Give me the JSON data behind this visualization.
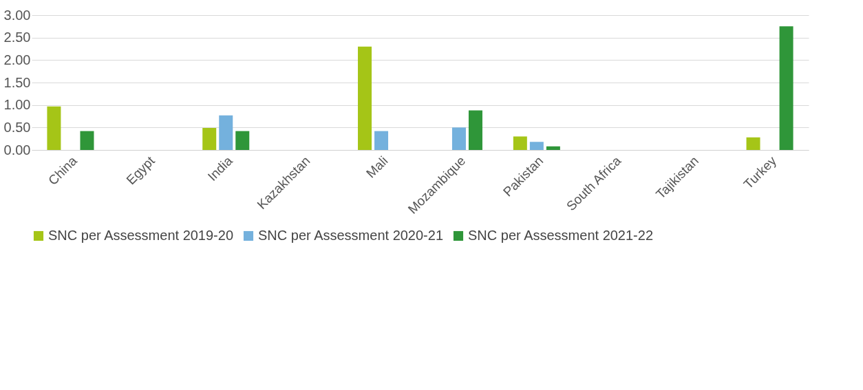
{
  "chart_data": {
    "type": "bar",
    "categories": [
      "China",
      "Egypt",
      "India",
      "Kazakhstan",
      "Mali",
      "Mozambique",
      "Pakistan",
      "South Africa",
      "Tajikistan",
      "Turkey"
    ],
    "series": [
      {
        "name": "SNC per Assessment 2019-20",
        "color": "#a5c517",
        "values": [
          0.97,
          0,
          0.49,
          0,
          2.3,
          0,
          0.3,
          0,
          0,
          0.28
        ]
      },
      {
        "name": "SNC per Assessment 2020-21",
        "color": "#74b1dd",
        "values": [
          0,
          0,
          0.77,
          0,
          0.42,
          0.5,
          0.18,
          0,
          0,
          0
        ]
      },
      {
        "name": "SNC per Assessment 2021-22",
        "color": "#2f9639",
        "values": [
          0.42,
          0,
          0.42,
          0,
          0,
          0.88,
          0.08,
          0,
          0,
          2.75
        ]
      }
    ],
    "ylim": [
      0,
      3
    ],
    "yticks": [
      {
        "value": 0,
        "label": "0.00"
      },
      {
        "value": 0.5,
        "label": "0.50"
      },
      {
        "value": 1,
        "label": "1.00"
      },
      {
        "value": 1.5,
        "label": "1.50"
      },
      {
        "value": 2,
        "label": "2.00"
      },
      {
        "value": 2.5,
        "label": "2.50"
      },
      {
        "value": 3,
        "label": "3.00"
      }
    ],
    "grid": "y",
    "legend": "bottom"
  }
}
